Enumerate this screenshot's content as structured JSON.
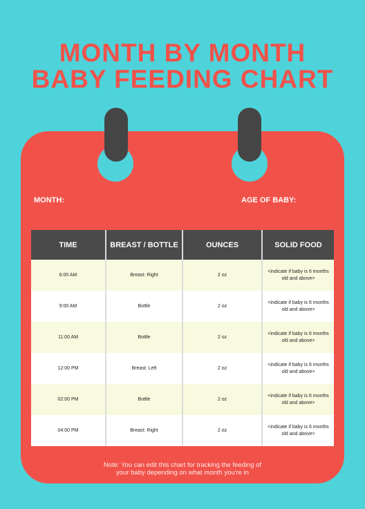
{
  "title": {
    "line1": "MONTH BY MONTH",
    "line2": "BABY FEEDING CHART"
  },
  "fields": {
    "month_label": "MONTH:",
    "age_label": "AGE OF BABY:"
  },
  "table": {
    "headers": [
      "TIME",
      "BREAST / BOTTLE",
      "OUNCES",
      "SOLID FOOD"
    ],
    "rows": [
      [
        "6:00 AM",
        "Breast: Right",
        "2 oz",
        "<indicate if baby is 6 months old and above>"
      ],
      [
        "9:00 AM",
        "Bottle",
        "2 oz",
        "<indicate if baby is 6 months old and above>"
      ],
      [
        "11:00 AM",
        "Bottle",
        "2 oz",
        "<indicate if baby is 6 months old and above>"
      ],
      [
        "12:00 PM",
        "Breast: Left",
        "2 oz",
        "<indicate if baby is 6 months old and above>"
      ],
      [
        "02:00 PM",
        "Bottle",
        "2 oz",
        "<indicate if baby is 6 months old and above>"
      ],
      [
        "04:00 PM",
        "Breast: Right",
        "2 oz",
        "<indicate if baby is 6 months old and above>"
      ]
    ]
  },
  "note": {
    "line1": "Note: You can edit this chart for tracking the feeding of",
    "line2": "your baby depending on what month you're in"
  },
  "colors": {
    "background": "#4fd3db",
    "accent": "#f0524a",
    "header": "#4a4a4a",
    "row_highlight": "#f8fadf"
  }
}
